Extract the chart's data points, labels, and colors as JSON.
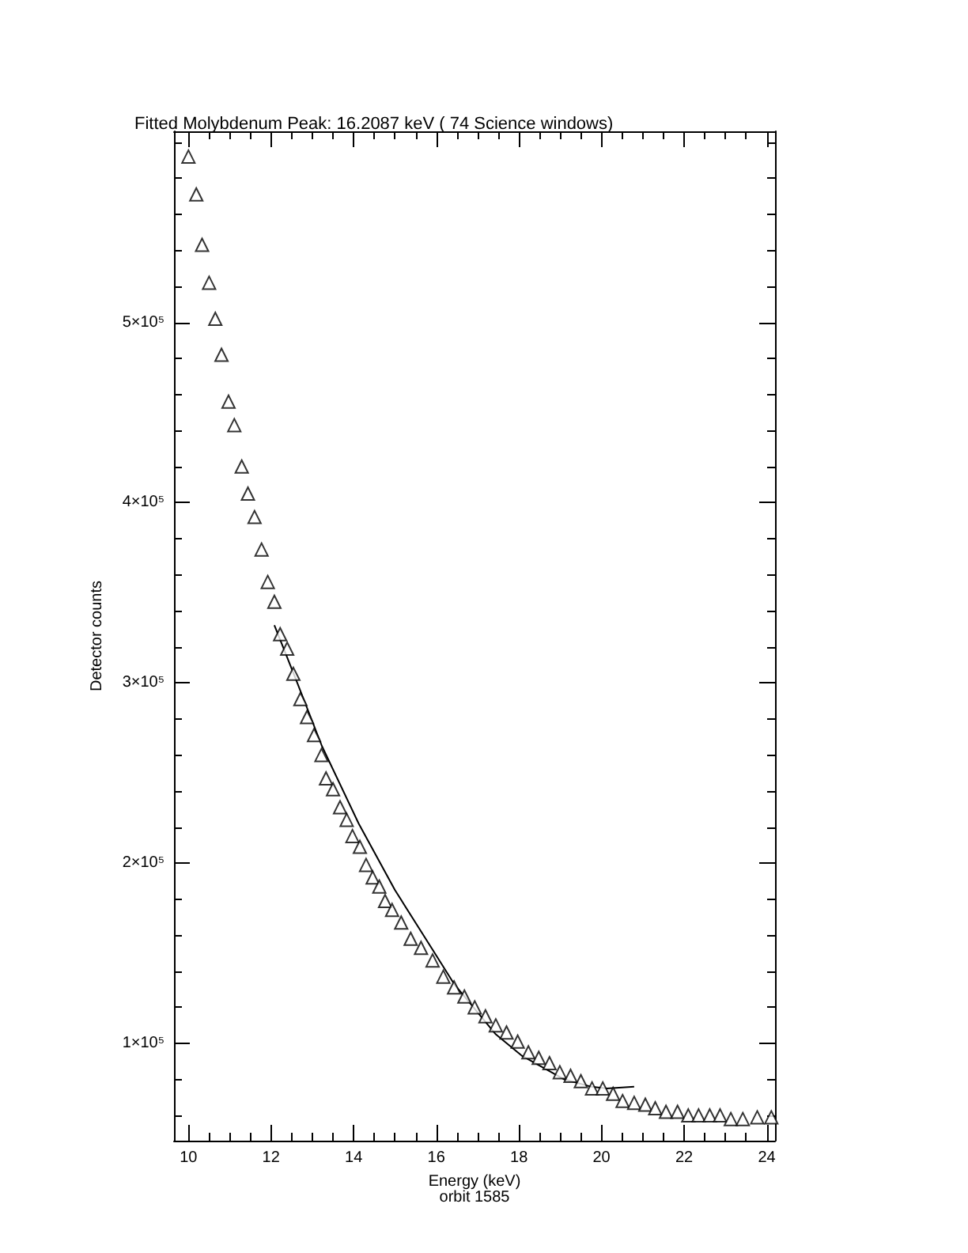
{
  "chart_data": {
    "type": "scatter",
    "title": "Fitted Molybdenum Peak: 16.2087 keV ( 74 Science windows)",
    "xlabel": "Energy (keV)",
    "ylabel": "Detector counts",
    "annotations": [
      "orbit 1585"
    ],
    "marker": "triangle",
    "xlim": [
      9.65,
      24.2
    ],
    "ylim": [
      46000,
      606000
    ],
    "xticks": [
      10,
      {
        "value": 10.5,
        "label": null
      },
      {
        "value": 11,
        "label": null
      },
      {
        "value": 11.5,
        "label": null
      },
      12,
      {
        "value": 12.5,
        "label": null
      },
      {
        "value": 13,
        "label": null
      },
      {
        "value": 13.5,
        "label": null
      },
      14,
      {
        "value": 14.5,
        "label": null
      },
      {
        "value": 15,
        "label": null
      },
      {
        "value": 15.5,
        "label": null
      },
      16,
      {
        "value": 16.5,
        "label": null
      },
      {
        "value": 17,
        "label": null
      },
      {
        "value": 17.5,
        "label": null
      },
      18,
      {
        "value": 18.5,
        "label": null
      },
      {
        "value": 19,
        "label": null
      },
      {
        "value": 19.5,
        "label": null
      },
      20,
      {
        "value": 20.5,
        "label": null
      },
      {
        "value": 21,
        "label": null
      },
      {
        "value": 21.5,
        "label": null
      },
      22,
      {
        "value": 22.5,
        "label": null
      },
      {
        "value": 23,
        "label": null
      },
      {
        "value": 23.5,
        "label": null
      },
      24
    ],
    "yticks": [
      {
        "value": 60000,
        "label": null
      },
      {
        "value": 80000,
        "label": null
      },
      {
        "value": 100000,
        "label": "1×10⁵"
      },
      {
        "value": 120000,
        "label": null
      },
      {
        "value": 140000,
        "label": null
      },
      {
        "value": 160000,
        "label": null
      },
      {
        "value": 180000,
        "label": null
      },
      {
        "value": 200000,
        "label": "2×10⁵"
      },
      {
        "value": 220000,
        "label": null
      },
      {
        "value": 240000,
        "label": null
      },
      {
        "value": 260000,
        "label": null
      },
      {
        "value": 280000,
        "label": null
      },
      {
        "value": 300000,
        "label": "3×10⁵"
      },
      {
        "value": 320000,
        "label": null
      },
      {
        "value": 340000,
        "label": null
      },
      {
        "value": 360000,
        "label": null
      },
      {
        "value": 380000,
        "label": null
      },
      {
        "value": 400000,
        "label": "4×10⁵"
      },
      {
        "value": 420000,
        "label": null
      },
      {
        "value": 440000,
        "label": null
      },
      {
        "value": 460000,
        "label": null
      },
      {
        "value": 480000,
        "label": null
      },
      {
        "value": 500000,
        "label": "5×10⁵"
      },
      {
        "value": 520000,
        "label": null
      },
      {
        "value": 540000,
        "label": null
      },
      {
        "value": 560000,
        "label": null
      },
      {
        "value": 580000,
        "label": null
      },
      {
        "value": 600000,
        "label": null
      }
    ],
    "series": [
      {
        "color": "#000000",
        "x": [
          10.0,
          10.19,
          10.33,
          10.5,
          10.65,
          10.8,
          10.97,
          11.11,
          11.29,
          11.44,
          11.6,
          11.77,
          11.92,
          12.08,
          12.22,
          12.39,
          12.54,
          12.71,
          12.87,
          13.04,
          13.22,
          13.33,
          13.5,
          13.67,
          13.83,
          13.97,
          14.15,
          14.3,
          14.46,
          14.62,
          14.76,
          14.93,
          15.15,
          15.38,
          15.63,
          15.91,
          16.17,
          16.43,
          16.68,
          16.93,
          17.19,
          17.44,
          17.7,
          17.97,
          18.23,
          18.48,
          18.74,
          18.99,
          19.25,
          19.5,
          19.77,
          20.03,
          20.28,
          20.51,
          20.79,
          21.06,
          21.3,
          21.56,
          21.84,
          22.1,
          22.35,
          22.62,
          22.87,
          23.13,
          23.42,
          23.77,
          24.11
        ],
        "values": [
          592000,
          571000,
          543000,
          522000,
          502000,
          482000,
          456000,
          443000,
          420000,
          405000,
          392000,
          374000,
          356000,
          345000,
          327000,
          319000,
          305000,
          291000,
          281000,
          271000,
          260000,
          247000,
          241000,
          231000,
          224000,
          215000,
          209000,
          199000,
          192000,
          187000,
          179000,
          174000,
          167000,
          158000,
          153000,
          146000,
          137000,
          131000,
          126000,
          120000,
          115000,
          110000,
          106000,
          101000,
          95000,
          92000,
          89000,
          84000,
          82000,
          79000,
          75000,
          75000,
          72000,
          68000,
          67000,
          66000,
          64000,
          62000,
          62000,
          60000,
          60000,
          60000,
          60000,
          58000,
          58000,
          59000,
          59000
        ]
      },
      {
        "type": "line",
        "color": "#000000",
        "marker": "none",
        "x": [
          12.08,
          12.6,
          13.23,
          14.12,
          15.0,
          15.91,
          16.43,
          17.44,
          18.08,
          19.1,
          19.74,
          20.13,
          20.79
        ],
        "values": [
          332000,
          302000,
          265000,
          222000,
          185000,
          152000,
          133000,
          105000,
          93000,
          80000,
          76000,
          75000,
          76000
        ]
      }
    ]
  }
}
